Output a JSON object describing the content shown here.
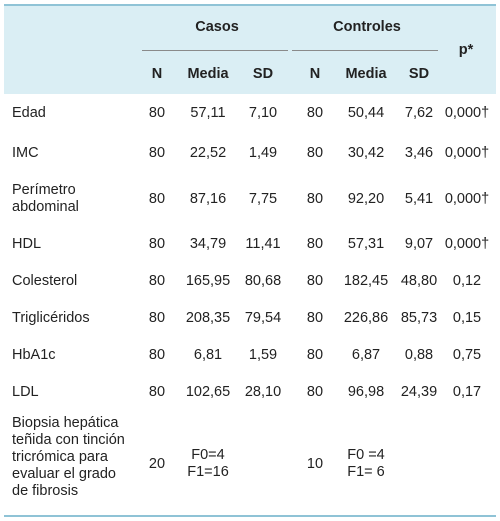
{
  "header": {
    "casos": "Casos",
    "controles": "Controles",
    "p": "p*",
    "n1": "N",
    "media1": "Media",
    "sd1": "SD",
    "n2": "N",
    "media2": "Media",
    "sd2": "SD"
  },
  "rows": [
    {
      "label": "Edad",
      "n1": "80",
      "media1": "57,11",
      "sd1": "7,10",
      "n2": "80",
      "media2": "50,44",
      "sd2": "7,62",
      "p": "0,000†"
    },
    {
      "label": "IMC",
      "n1": "80",
      "media1": "22,52",
      "sd1": "1,49",
      "n2": "80",
      "media2": "30,42",
      "sd2": "3,46",
      "p": "0,000†"
    },
    {
      "label": "Perímetro abdominal",
      "n1": "80",
      "media1": "87,16",
      "sd1": "7,75",
      "n2": "80",
      "media2": "92,20",
      "sd2": "5,41",
      "p": "0,000†"
    },
    {
      "label": "HDL",
      "n1": "80",
      "media1": "34,79",
      "sd1": "11,41",
      "n2": "80",
      "media2": "57,31",
      "sd2": "9,07",
      "p": "0,000†"
    },
    {
      "label": "Colesterol",
      "n1": "80",
      "media1": "165,95",
      "sd1": "80,68",
      "n2": "80",
      "media2": "182,45",
      "sd2": "48,80",
      "p": "0,12"
    },
    {
      "label": "Triglicéridos",
      "n1": "80",
      "media1": "208,35",
      "sd1": "79,54",
      "n2": "80",
      "media2": "226,86",
      "sd2": "85,73",
      "p": "0,15"
    },
    {
      "label": "HbA1c",
      "n1": "80",
      "media1": "6,81",
      "sd1": "1,59",
      "n2": "80",
      "media2": "6,87",
      "sd2": "0,88",
      "p": "0,75"
    },
    {
      "label": "LDL",
      "n1": "80",
      "media1": "102,65",
      "sd1": "28,10",
      "n2": "80",
      "media2": "96,98",
      "sd2": "24,39",
      "p": "0,17"
    }
  ],
  "last_row": {
    "label_lines": [
      "Biopsia hepática",
      "teñida con tinción",
      "tricrómica para",
      "evaluar el grado",
      "de fibrosis"
    ],
    "n1": "20",
    "media1_lines": [
      "F0=4",
      "F1=16"
    ],
    "n2": "10",
    "media2_lines": [
      "F0 =4",
      "F1= 6"
    ]
  }
}
